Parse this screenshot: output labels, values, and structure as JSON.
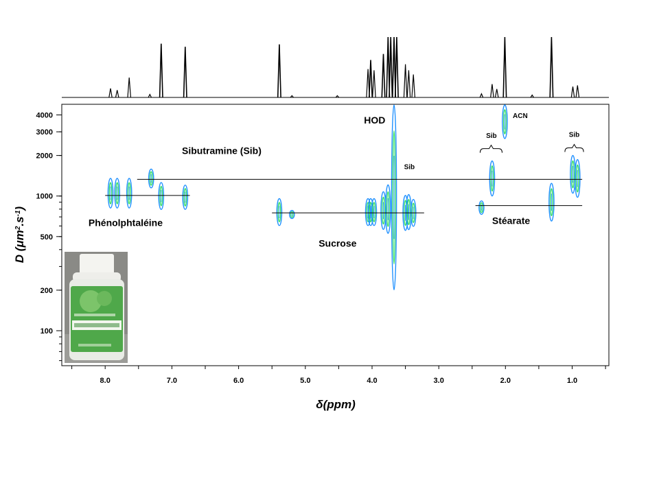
{
  "chart_data": {
    "type": "scatter",
    "subtype": "DOSY 2D NMR map with 1D 1H projection",
    "x_axis": {
      "title_symbol": "δ",
      "title_text": "(ppm)",
      "ticks": [
        8.0,
        7.0,
        6.0,
        5.0,
        4.0,
        3.0,
        2.0,
        1.0
      ],
      "tick_labels": [
        "8.0",
        "7.0",
        "6.0",
        "5.0",
        "4.0",
        "3.0",
        "2.0",
        "1.0"
      ],
      "range": [
        8.65,
        0.45
      ],
      "reversed": true
    },
    "y_axis": {
      "title_main": "D (",
      "title_mu": "μ",
      "title_m": "m",
      "title_sup1": "2",
      "title_s": ".s",
      "title_sup2": "-1",
      "title_close": ")",
      "scale": "log",
      "range": [
        55,
        4800
      ],
      "ticks": [
        100,
        200,
        500,
        1000,
        2000,
        3000,
        4000
      ],
      "tick_labels": [
        "100",
        "200",
        "500",
        "1000",
        "2000",
        "3000",
        "4000"
      ]
    },
    "spectrum_peaks": [
      {
        "ppm": 7.92,
        "h": 0.15
      },
      {
        "ppm": 7.82,
        "h": 0.12
      },
      {
        "ppm": 7.64,
        "h": 0.33
      },
      {
        "ppm": 7.33,
        "h": 0.05
      },
      {
        "ppm": 7.16,
        "h": 0.89
      },
      {
        "ppm": 6.8,
        "h": 0.84
      },
      {
        "ppm": 5.39,
        "h": 0.88
      },
      {
        "ppm": 5.2,
        "h": 0.03
      },
      {
        "ppm": 4.52,
        "h": 0.03
      },
      {
        "ppm": 4.06,
        "h": 0.47
      },
      {
        "ppm": 4.02,
        "h": 0.62
      },
      {
        "ppm": 3.97,
        "h": 0.45
      },
      {
        "ppm": 3.83,
        "h": 0.72
      },
      {
        "ppm": 3.76,
        "h": 1.0
      },
      {
        "ppm": 3.72,
        "h": 1.0
      },
      {
        "ppm": 3.67,
        "h": 1.0
      },
      {
        "ppm": 3.63,
        "h": 1.0
      },
      {
        "ppm": 3.5,
        "h": 0.55
      },
      {
        "ppm": 3.45,
        "h": 0.45
      },
      {
        "ppm": 3.38,
        "h": 0.38
      },
      {
        "ppm": 2.36,
        "h": 0.06
      },
      {
        "ppm": 2.2,
        "h": 0.22
      },
      {
        "ppm": 2.13,
        "h": 0.14
      },
      {
        "ppm": 2.01,
        "h": 1.0
      },
      {
        "ppm": 1.6,
        "h": 0.04
      },
      {
        "ppm": 1.31,
        "h": 1.0
      },
      {
        "ppm": 0.99,
        "h": 0.18
      },
      {
        "ppm": 0.92,
        "h": 0.2
      }
    ],
    "cross_peaks": [
      {
        "ppm": 7.92,
        "D": 1050,
        "span": 0.22
      },
      {
        "ppm": 7.82,
        "D": 1050,
        "span": 0.22
      },
      {
        "ppm": 7.64,
        "D": 1050,
        "span": 0.22
      },
      {
        "ppm": 7.31,
        "D": 1350,
        "span": 0.14
      },
      {
        "ppm": 7.16,
        "D": 1000,
        "span": 0.2
      },
      {
        "ppm": 6.8,
        "D": 980,
        "span": 0.18
      },
      {
        "ppm": 5.39,
        "D": 760,
        "span": 0.2
      },
      {
        "ppm": 5.2,
        "D": 730,
        "span": 0.06
      },
      {
        "ppm": 4.06,
        "D": 760,
        "span": 0.2
      },
      {
        "ppm": 4.02,
        "D": 760,
        "span": 0.2
      },
      {
        "ppm": 3.97,
        "D": 760,
        "span": 0.2
      },
      {
        "ppm": 3.83,
        "D": 780,
        "span": 0.28
      },
      {
        "ppm": 3.76,
        "D": 800,
        "span": 0.36
      },
      {
        "ppm": 3.67,
        "D": 1200,
        "span": 1.55
      },
      {
        "ppm": 3.5,
        "D": 750,
        "span": 0.26
      },
      {
        "ppm": 3.45,
        "D": 760,
        "span": 0.26
      },
      {
        "ppm": 3.38,
        "D": 750,
        "span": 0.2
      },
      {
        "ppm": 2.36,
        "D": 820,
        "span": 0.1
      },
      {
        "ppm": 2.2,
        "D": 1350,
        "span": 0.26
      },
      {
        "ppm": 2.01,
        "D": 3600,
        "span": 0.26
      },
      {
        "ppm": 1.31,
        "D": 900,
        "span": 0.28
      },
      {
        "ppm": 0.99,
        "D": 1450,
        "span": 0.28
      },
      {
        "ppm": 0.92,
        "D": 1350,
        "span": 0.28
      }
    ],
    "reference_lines": [
      {
        "name": "Sibutramine (Sib)",
        "D": 1330,
        "from_ppm": 7.52,
        "to_ppm": 0.85
      },
      {
        "name": "Phénolphtaléine",
        "D": 1010,
        "from_ppm": 8.0,
        "to_ppm": 6.73
      },
      {
        "name": "Sucrose",
        "D": 750,
        "from_ppm": 5.5,
        "to_ppm": 3.22
      },
      {
        "name": "Stéarate",
        "D": 850,
        "from_ppm": 2.45,
        "to_ppm": 0.85
      }
    ],
    "annotations": [
      {
        "id": "label-sibutramine",
        "text": "Sibutramine (Sib)",
        "ppm": 6.85,
        "D": 2050,
        "size": "large",
        "anchor": "start"
      },
      {
        "id": "label-phenolphtaleine",
        "text": "Phénolphtaléine",
        "ppm": 8.25,
        "D": 600,
        "size": "large",
        "anchor": "start"
      },
      {
        "id": "label-sucrose",
        "text": "Sucrose",
        "ppm": 4.8,
        "D": 420,
        "size": "large",
        "anchor": "start"
      },
      {
        "id": "label-hod",
        "text": "HOD",
        "ppm": 4.12,
        "D": 3450,
        "size": "large",
        "anchor": "start"
      },
      {
        "id": "label-stearate",
        "text": "Stéarate",
        "ppm": 2.2,
        "D": 620,
        "size": "large",
        "anchor": "start"
      },
      {
        "id": "label-acn",
        "text": "ACN",
        "ppm": 1.89,
        "D": 3800,
        "size": "small",
        "anchor": "start"
      },
      {
        "id": "label-sib-hod",
        "text": "Sib",
        "ppm": 3.52,
        "D": 1580,
        "size": "small",
        "anchor": "start"
      },
      {
        "id": "label-sib-22",
        "text": "Sib",
        "ppm": 2.21,
        "D": 2700,
        "size": "small",
        "anchor": "middle"
      },
      {
        "id": "label-sib-09",
        "text": "Sib",
        "ppm": 0.97,
        "D": 2750,
        "size": "small",
        "anchor": "middle"
      }
    ],
    "braces": [
      {
        "ppm_from": 2.38,
        "ppm_to": 2.05,
        "D": 2250
      },
      {
        "ppm_from": 1.11,
        "ppm_to": 0.83,
        "D": 2280
      }
    ],
    "colors": {
      "contour_outer": "#1e90ff",
      "contour_inner": "#33dd66",
      "line": "#000000"
    },
    "grid": false
  },
  "product_photo": {
    "colors": {
      "cap": "#f4f4f0",
      "label": "#4fa84a",
      "label_light": "#7cc46a",
      "background": "#8a8a86"
    }
  }
}
